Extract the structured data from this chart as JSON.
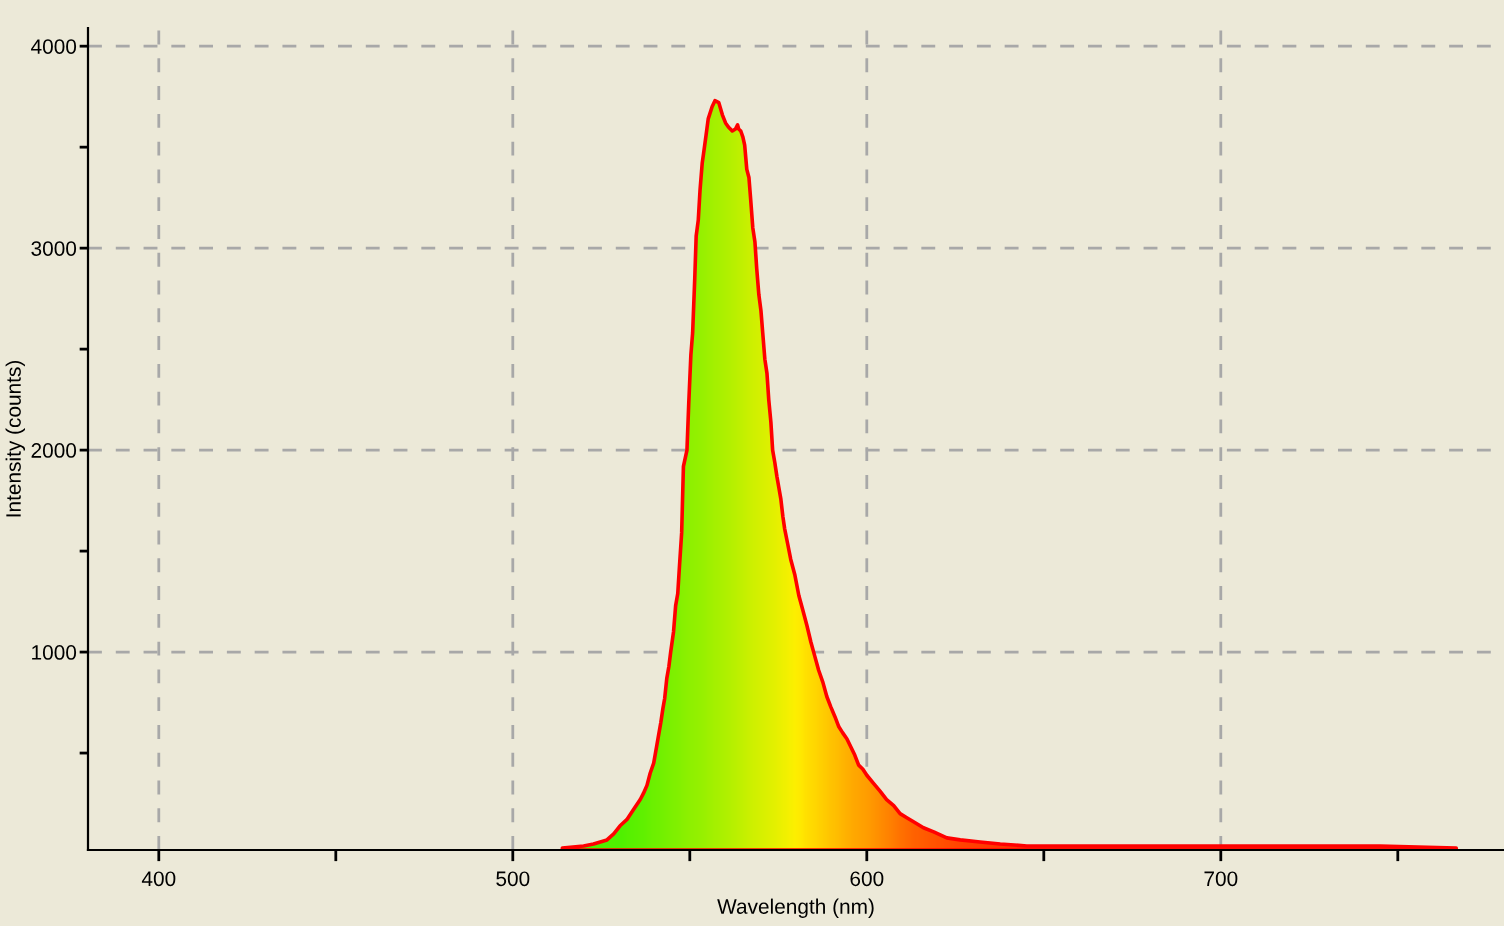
{
  "chart_data": {
    "type": "area",
    "xlabel": "Wavelength (nm)",
    "ylabel": "Intensity (counts)",
    "x": [
      514.0,
      520.0,
      522.8,
      526.6,
      528.5,
      530.3,
      532.2,
      534.1,
      536.0,
      536.9,
      537.9,
      538.8,
      539.8,
      540.7,
      541.2,
      541.8,
      542.4,
      542.9,
      543.5,
      544.1,
      544.6,
      545.4,
      546.0,
      546.6,
      547.1,
      547.7,
      548.2,
      549.2,
      549.7,
      550.3,
      550.8,
      551.4,
      551.8,
      552.4,
      552.9,
      553.5,
      553.9,
      554.6,
      555.2,
      556.3,
      557.1,
      558.2,
      559.2,
      560.1,
      560.9,
      562.0,
      562.9,
      563.5,
      563.8,
      564.4,
      565.0,
      565.5,
      566.1,
      566.7,
      567.2,
      567.8,
      568.4,
      568.9,
      569.5,
      570.1,
      570.6,
      571.2,
      571.8,
      572.3,
      572.9,
      573.4,
      574.0,
      574.6,
      575.1,
      575.7,
      576.3,
      576.8,
      577.6,
      578.5,
      579.7,
      580.8,
      581.9,
      583.1,
      584.2,
      585.3,
      586.4,
      587.6,
      588.7,
      589.8,
      591.0,
      592.1,
      593.2,
      594.4,
      595.5,
      596.6,
      597.7,
      598.9,
      600.0,
      601.9,
      603.8,
      605.6,
      607.6,
      609.4,
      611.3,
      613.2,
      616.0,
      618.9,
      622.6,
      626.4,
      632.0,
      637.7,
      645.2,
      654.6,
      671.6,
      699.8,
      722.4,
      745.0,
      766.5
    ],
    "series": [
      {
        "color": "#ff0000",
        "values": [
          30,
          40,
          50,
          70,
          100,
          140,
          170,
          220,
          270,
          300,
          340,
          400,
          450,
          540,
          590,
          650,
          720,
          770,
          870,
          930,
          1000,
          1100,
          1230,
          1290,
          1430,
          1590,
          1920,
          2000,
          2230,
          2470,
          2580,
          2850,
          3060,
          3140,
          3290,
          3420,
          3470,
          3560,
          3640,
          3700,
          3730,
          3720,
          3660,
          3620,
          3600,
          3580,
          3590,
          3610,
          3590,
          3580,
          3550,
          3510,
          3390,
          3350,
          3240,
          3100,
          3030,
          2900,
          2770,
          2690,
          2580,
          2450,
          2380,
          2250,
          2140,
          2000,
          1940,
          1870,
          1820,
          1760,
          1670,
          1610,
          1540,
          1460,
          1380,
          1280,
          1210,
          1130,
          1050,
          980,
          910,
          850,
          780,
          730,
          680,
          630,
          600,
          570,
          530,
          490,
          440,
          420,
          390,
          350,
          310,
          270,
          240,
          200,
          180,
          160,
          130,
          110,
          80,
          70,
          60,
          50,
          40,
          40,
          40,
          40,
          40,
          40,
          30
        ],
        "colors": [
          "#44ff00",
          "#44ff00",
          "#44ff00",
          "#44ff00",
          "#44ff00",
          "#44ff00",
          "#4cff00",
          "#50ff00",
          "#55ff00",
          "#58ff00",
          "#5cff00",
          "#60ff00",
          "#64ff00",
          "#66ff00",
          "#68ff00",
          "#6aff00",
          "#6cff00",
          "#6eff00",
          "#70ff00",
          "#72ff00",
          "#74ff00",
          "#77ff00",
          "#79ff00",
          "#7bff00",
          "#7dff00",
          "#80ff00",
          "#82ff00",
          "#85ff00",
          "#87ff00",
          "#88ff00",
          "#8aff00",
          "#8cff00",
          "#8dff00",
          "#8fff00",
          "#90ff00",
          "#92ff00",
          "#93ff00",
          "#96ff00",
          "#99ff00",
          "#9dff00",
          "#a0ff00",
          "#a3ff00",
          "#a7ff00",
          "#aaff00",
          "#aeff00",
          "#b3ff00",
          "#b6ff00",
          "#b9ff00",
          "#baff00",
          "#bdff00",
          "#c0ff00",
          "#c2ff00",
          "#c5ff00",
          "#c7ff00",
          "#c9ff00",
          "#ccff00",
          "#ceff00",
          "#d0ff00",
          "#d2ff00",
          "#d4ff00",
          "#d6ff00",
          "#d8ff00",
          "#daff00",
          "#dcff00",
          "#dfff00",
          "#e1ff00",
          "#e3ff00",
          "#e6ff00",
          "#e8ff00",
          "#ebff00",
          "#eeff00",
          "#f0ff00",
          "#f4ff00",
          "#f8ff00",
          "#feff00",
          "#fffb00",
          "#fff500",
          "#ffee00",
          "#ffea00",
          "#ffe600",
          "#ffe000",
          "#ffdb00",
          "#ffd600",
          "#ffd100",
          "#ffcc00",
          "#ffc700",
          "#ffc200",
          "#ffbc00",
          "#ffb700",
          "#ffb300",
          "#ffb000",
          "#ffac00",
          "#ffa800",
          "#ffa000",
          "#ff9600",
          "#ff8e00",
          "#ff8400",
          "#ff7a00",
          "#ff7200",
          "#ff6a00",
          "#ff6200",
          "#ff5a00",
          "#ff5200",
          "#ff4a00",
          "#ff4200",
          "#ff3a00",
          "#ff3200",
          "#ff2a00",
          "#ff2400",
          "#ff2000",
          "#ff2000",
          "#ff2000",
          "#ff2000"
        ]
      }
    ],
    "xlim": [
      380,
      780
    ],
    "ylim": [
      20,
      4090
    ],
    "xticks": [
      400,
      {
        "value": 450,
        "label": null
      },
      500,
      {
        "value": 550,
        "label": null
      },
      600,
      {
        "value": 650,
        "label": null
      },
      700,
      {
        "value": 750,
        "label": null
      }
    ],
    "yticks": [
      {
        "value": 500,
        "label": null
      },
      1000,
      {
        "value": 1500,
        "label": null
      },
      2000,
      {
        "value": 2500,
        "label": null
      },
      3000,
      {
        "value": 3500,
        "label": null
      },
      4000
    ],
    "grid": true
  }
}
